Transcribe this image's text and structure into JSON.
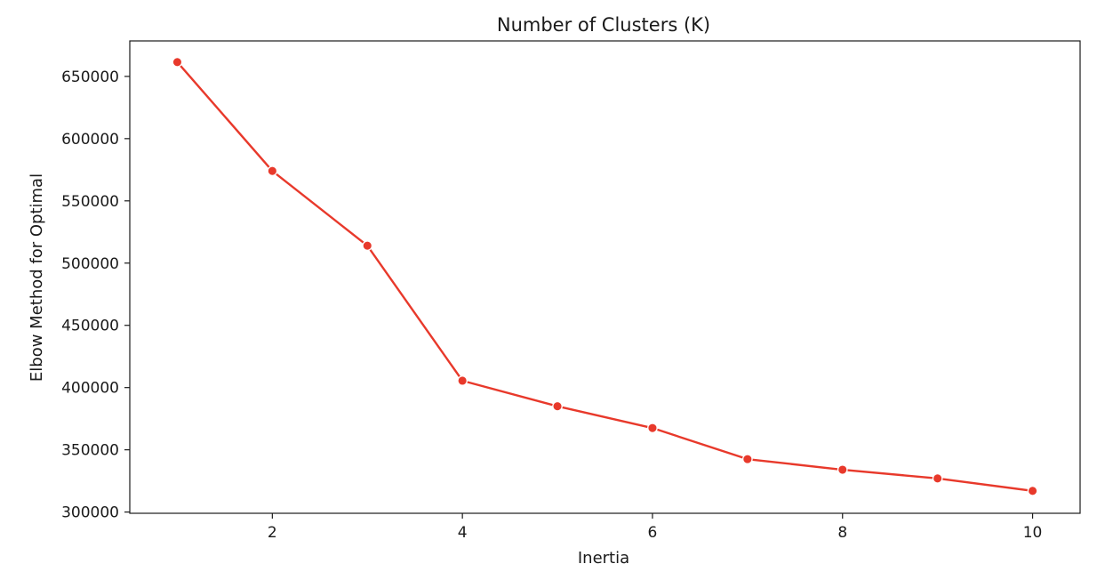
{
  "chart_data": {
    "type": "line",
    "title": "Number of Clusters (K)",
    "xlabel": "Inertia",
    "ylabel": "Elbow Method for Optimal",
    "x": [
      1,
      2,
      3,
      4,
      5,
      6,
      7,
      8,
      9,
      10
    ],
    "series": [
      {
        "values": [
          661500,
          574000,
          514000,
          405500,
          385000,
          367500,
          342500,
          334000,
          327000,
          317000
        ]
      }
    ],
    "xlim": [
      0.5,
      10.5
    ],
    "ylim": [
      299000,
      678500
    ],
    "xticks": [
      2,
      4,
      6,
      8,
      10
    ],
    "xtick_labels": [
      "2",
      "4",
      "6",
      "8",
      "10"
    ],
    "yticks": [
      300000,
      350000,
      400000,
      450000,
      500000,
      550000,
      600000,
      650000
    ],
    "ytick_labels": [
      "300000",
      "350000",
      "400000",
      "450000",
      "500000",
      "550000",
      "600000",
      "650000"
    ],
    "grid": false,
    "legend": "none",
    "colors": {
      "line": "#e8392b",
      "axis": "#1a1a1a"
    },
    "marker": "circle"
  }
}
